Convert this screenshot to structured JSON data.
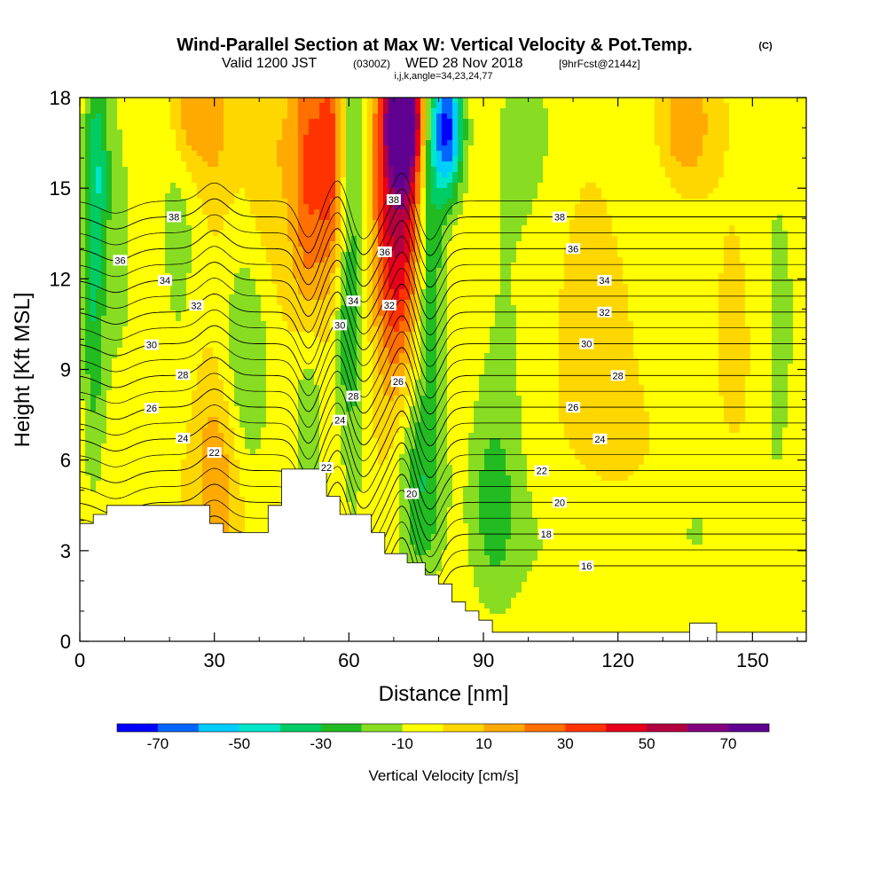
{
  "title": "Wind-Parallel Section at Max W: Vertical Velocity & Pot.Temp.",
  "title_mark": "(C)",
  "subtitle": {
    "valid": "Valid 1200 JST",
    "utc": "(0300Z)",
    "date": "WED 28 Nov 2018",
    "forecast": "[9hrFcst@2144z]"
  },
  "params_line": "i,j,k,angle=34,23,24,77",
  "chart_data": {
    "type": "heatmap",
    "xlabel": "Distance [nm]",
    "ylabel": "Height [Kft MSL]",
    "xlim": [
      0,
      162
    ],
    "ylim": [
      0,
      18
    ],
    "x_ticks": [
      0,
      30,
      60,
      90,
      120,
      150
    ],
    "y_ticks": [
      0,
      3,
      6,
      9,
      12,
      15,
      18
    ],
    "background_value": 0,
    "velocity_features": [
      {
        "x": 3,
        "y": 11.5,
        "sx": 2,
        "sy": 4.5,
        "value": -28
      },
      {
        "x": 4,
        "y": 16,
        "sx": 2,
        "sy": 2.2,
        "value": -22
      },
      {
        "x": 9,
        "y": 13,
        "sx": 3,
        "sy": 5,
        "value": -12
      },
      {
        "x": 22,
        "y": 15,
        "sx": 3.5,
        "sy": 5,
        "value": -15
      },
      {
        "x": 24,
        "y": 17.5,
        "sx": 3,
        "sy": 1.5,
        "value": 25
      },
      {
        "x": 31,
        "y": 5.5,
        "sx": 4,
        "sy": 2.5,
        "value": 20
      },
      {
        "x": 30,
        "y": 17,
        "sx": 3,
        "sy": 2,
        "value": 12
      },
      {
        "x": 37,
        "y": 9,
        "sx": 4,
        "sy": 3,
        "value": -22
      },
      {
        "x": 43,
        "y": 16,
        "sx": 4,
        "sy": 3,
        "value": 10
      },
      {
        "x": 51,
        "y": 14,
        "sx": 2.5,
        "sy": 6,
        "value": 32
      },
      {
        "x": 51,
        "y": 8,
        "sx": 2.5,
        "sy": 3,
        "value": -35
      },
      {
        "x": 56,
        "y": 16,
        "sx": 2,
        "sy": 3,
        "value": 35
      },
      {
        "x": 61,
        "y": 13,
        "sx": 2.5,
        "sy": 7,
        "value": -22
      },
      {
        "x": 59,
        "y": 10,
        "sx": 2,
        "sy": 2,
        "value": -12
      },
      {
        "x": 72,
        "y": 15.5,
        "sx": 4.5,
        "sy": 3.5,
        "value": 55
      },
      {
        "x": 72,
        "y": 17.3,
        "sx": 2.5,
        "sy": 1.2,
        "value": 80
      },
      {
        "x": 70,
        "y": 11,
        "sx": 3,
        "sy": 3,
        "value": 15
      },
      {
        "x": 78,
        "y": 14,
        "sx": 2.5,
        "sy": 4,
        "value": -40
      },
      {
        "x": 82,
        "y": 17,
        "sx": 2.5,
        "sy": 1.6,
        "value": -70
      },
      {
        "x": 76,
        "y": 5,
        "sx": 4,
        "sy": 2.5,
        "value": -28
      },
      {
        "x": 92,
        "y": 4.5,
        "sx": 4,
        "sy": 2.5,
        "value": -20
      },
      {
        "x": 110,
        "y": 3,
        "sx": 12,
        "sy": 2,
        "value": -10
      },
      {
        "x": 140,
        "y": 4,
        "sx": 10,
        "sy": 3,
        "value": -10
      },
      {
        "x": 155,
        "y": 11,
        "sx": 6,
        "sy": 6,
        "value": -12
      },
      {
        "x": 100,
        "y": 17,
        "sx": 5,
        "sy": 2,
        "value": -12
      },
      {
        "x": 130,
        "y": 13,
        "sx": 8,
        "sy": 4,
        "value": -10
      },
      {
        "x": 95,
        "y": 11,
        "sx": 6,
        "sy": 5,
        "value": -10
      },
      {
        "x": 118,
        "y": 10,
        "sx": 6,
        "sy": 3,
        "value": 8
      },
      {
        "x": 135,
        "y": 17,
        "sx": 4,
        "sy": 1.5,
        "value": 25
      },
      {
        "x": 147,
        "y": 9,
        "sx": 4,
        "sy": 4,
        "value": 10
      },
      {
        "x": 125,
        "y": 6.5,
        "sx": 10,
        "sy": 1.5,
        "value": 5
      }
    ],
    "isentrope_values": [
      16,
      18,
      20,
      22,
      24,
      26,
      28,
      30,
      32,
      34,
      36,
      38
    ],
    "isentrope_base_height": 2.5,
    "isentrope_spacing": 1.05,
    "isentrope_waves": [
      {
        "x": 8,
        "w": 5,
        "amp": -0.4,
        "decay_height": 4
      },
      {
        "x": 30,
        "w": 4,
        "amp": 0.6,
        "decay_height": 2
      },
      {
        "x": 51,
        "w": 3,
        "amp": -1.2,
        "decay_height": 0
      },
      {
        "x": 58,
        "w": 3,
        "amp": 0.9,
        "decay_height": 0
      },
      {
        "x": 63,
        "w": 4,
        "amp": -1.3,
        "decay_height": 0
      },
      {
        "x": 72,
        "w": 3,
        "amp": 1.0,
        "decay_height": 0
      },
      {
        "x": 78,
        "w": 3.5,
        "amp": -1.3,
        "decay_height": 0
      }
    ],
    "contour_labels": [
      {
        "theta": 38,
        "x": 21
      },
      {
        "theta": 36,
        "x": 9
      },
      {
        "theta": 34,
        "x": 19
      },
      {
        "theta": 32,
        "x": 26
      },
      {
        "theta": 30,
        "x": 16
      },
      {
        "theta": 28,
        "x": 23
      },
      {
        "theta": 26,
        "x": 16
      },
      {
        "theta": 24,
        "x": 23
      },
      {
        "theta": 22,
        "x": 30
      },
      {
        "theta": 38,
        "x": 70
      },
      {
        "theta": 36,
        "x": 68
      },
      {
        "theta": 34,
        "x": 61
      },
      {
        "theta": 32,
        "x": 69
      },
      {
        "theta": 30,
        "x": 58
      },
      {
        "theta": 28,
        "x": 61
      },
      {
        "theta": 26,
        "x": 71
      },
      {
        "theta": 24,
        "x": 58
      },
      {
        "theta": 22,
        "x": 55
      },
      {
        "theta": 20,
        "x": 74
      },
      {
        "theta": 38,
        "x": 107
      },
      {
        "theta": 36,
        "x": 110
      },
      {
        "theta": 34,
        "x": 117
      },
      {
        "theta": 32,
        "x": 117
      },
      {
        "theta": 30,
        "x": 113
      },
      {
        "theta": 28,
        "x": 120
      },
      {
        "theta": 26,
        "x": 110
      },
      {
        "theta": 24,
        "x": 116
      },
      {
        "theta": 22,
        "x": 103
      },
      {
        "theta": 20,
        "x": 107
      },
      {
        "theta": 18,
        "x": 104
      },
      {
        "theta": 16,
        "x": 113
      }
    ],
    "terrain": [
      [
        0,
        3.9
      ],
      [
        3,
        3.9
      ],
      [
        3,
        4.2
      ],
      [
        6,
        4.2
      ],
      [
        6,
        4.5
      ],
      [
        29,
        4.5
      ],
      [
        29,
        3.9
      ],
      [
        32,
        3.9
      ],
      [
        32,
        3.6
      ],
      [
        42,
        3.6
      ],
      [
        42,
        4.5
      ],
      [
        45,
        4.5
      ],
      [
        45,
        5.7
      ],
      [
        55,
        5.7
      ],
      [
        55,
        4.8
      ],
      [
        58,
        4.8
      ],
      [
        58,
        4.2
      ],
      [
        65,
        4.2
      ],
      [
        65,
        3.6
      ],
      [
        68,
        3.6
      ],
      [
        68,
        2.9
      ],
      [
        73,
        2.9
      ],
      [
        73,
        2.6
      ],
      [
        77,
        2.6
      ],
      [
        77,
        2.2
      ],
      [
        80,
        2.2
      ],
      [
        80,
        1.9
      ],
      [
        83,
        1.9
      ],
      [
        83,
        1.3
      ],
      [
        86,
        1.3
      ],
      [
        86,
        1.0
      ],
      [
        89,
        1.0
      ],
      [
        89,
        0.7
      ],
      [
        92,
        0.7
      ],
      [
        92,
        0.3
      ],
      [
        95,
        0.3
      ],
      [
        95,
        0.3
      ],
      [
        162,
        0.3
      ]
    ],
    "terrain_extra_block": [
      [
        136,
        0.6
      ],
      [
        142,
        0.6
      ]
    ],
    "colorbar": {
      "label": "Vertical Velocity [cm/s]",
      "levels": [
        -80,
        -70,
        -60,
        -50,
        -40,
        -30,
        -20,
        -10,
        0,
        10,
        20,
        30,
        40,
        50,
        60,
        70,
        80
      ],
      "colors": [
        "#0000ff",
        "#0066ff",
        "#00ccff",
        "#00e6c8",
        "#00cc66",
        "#22bb22",
        "#88dd22",
        "#ffff00",
        "#ffd700",
        "#ffaa00",
        "#ff7000",
        "#ff3300",
        "#e6001a",
        "#b30040",
        "#800080",
        "#600090"
      ],
      "tick_labels": [
        "-70",
        "-50",
        "-30",
        "-10",
        "10",
        "30",
        "50",
        "70"
      ]
    }
  }
}
